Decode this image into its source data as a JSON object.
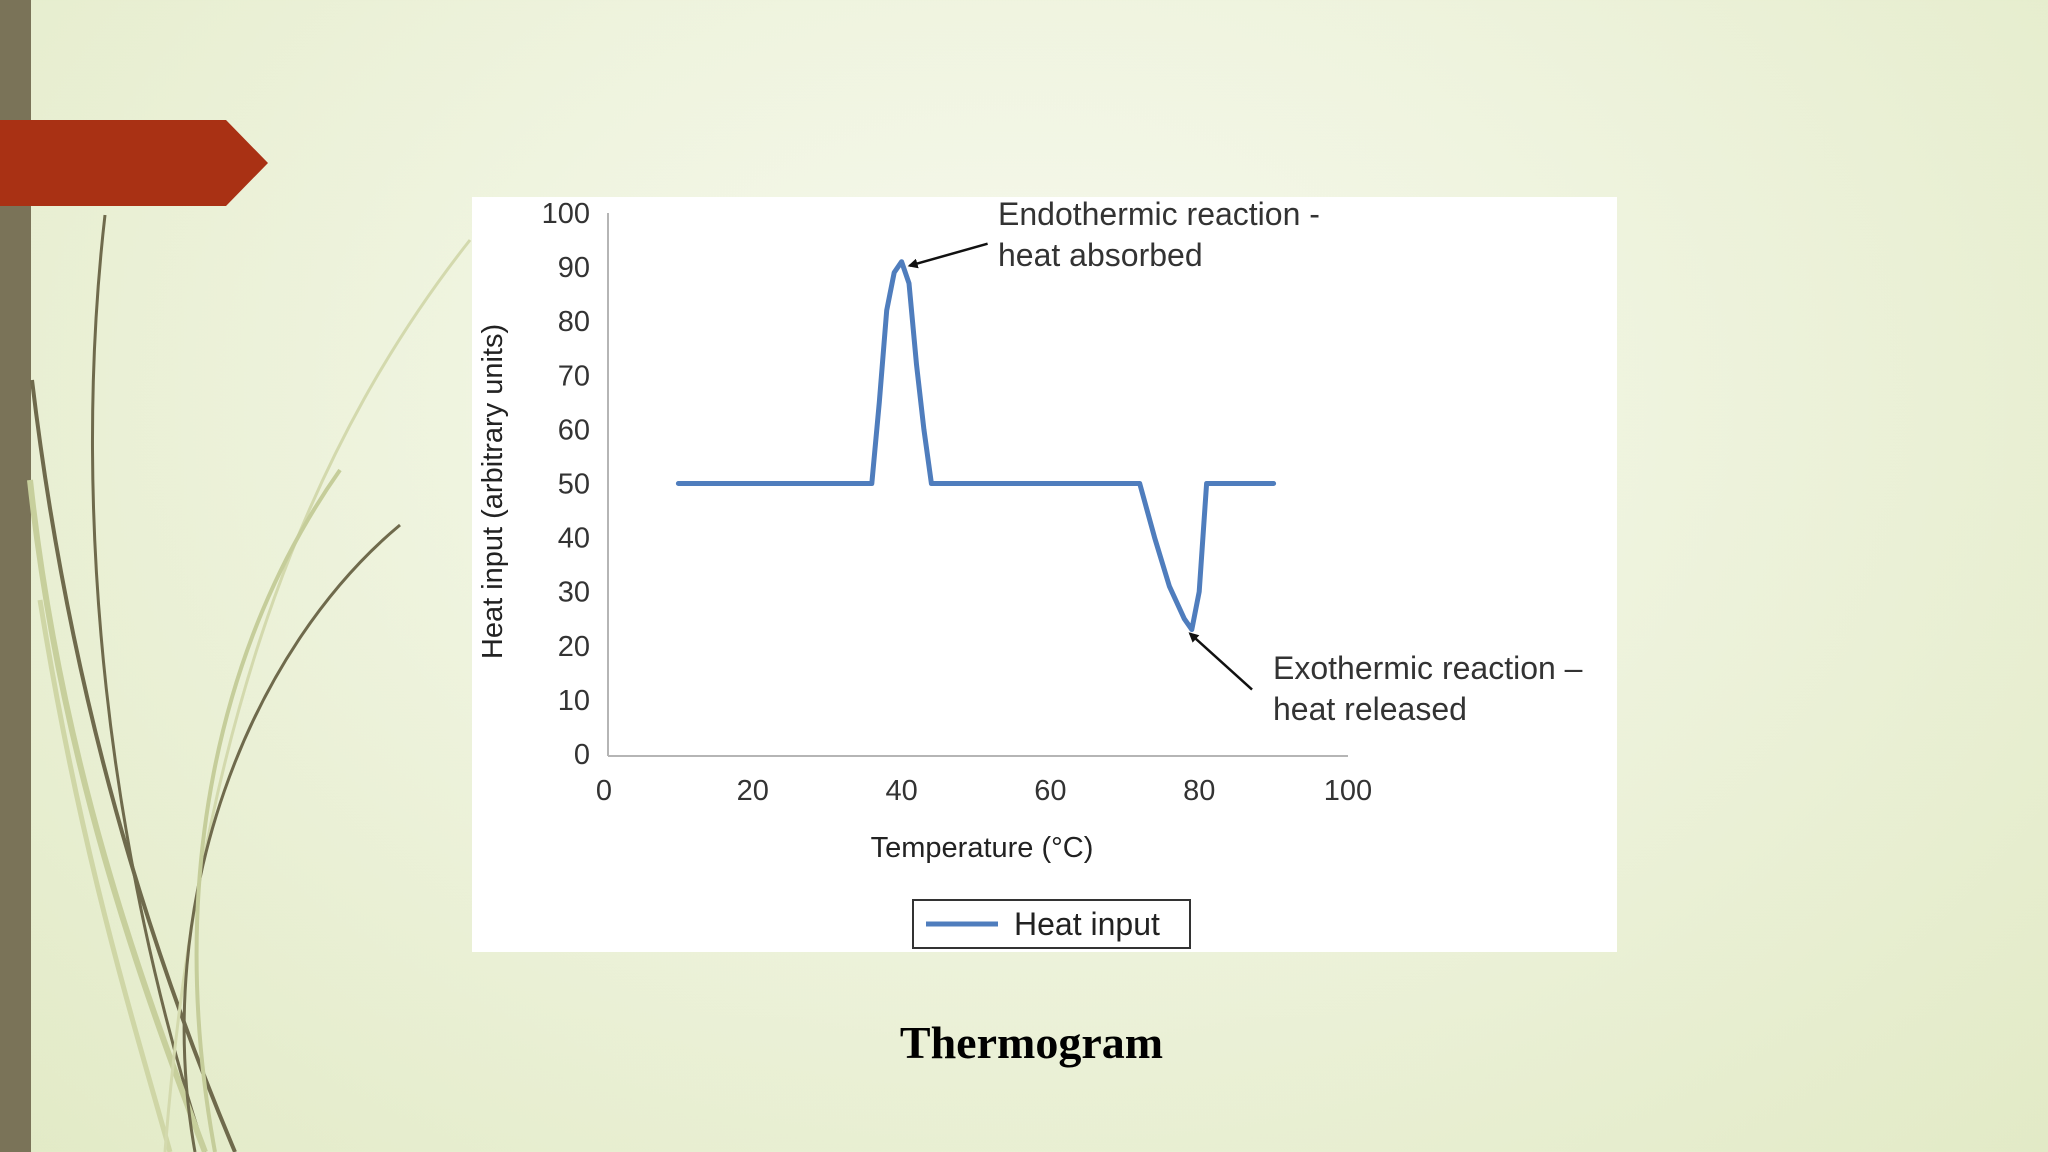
{
  "slide": {
    "caption": "Thermogram",
    "colors": {
      "accent": "#a93114",
      "left_bar": "#7a7358",
      "line": "#4f7dbd"
    }
  },
  "chart_data": {
    "type": "line",
    "xlabel": "Temperature (°C)",
    "ylabel": "Heat input (arbitrary units)",
    "xlim": [
      0,
      100
    ],
    "ylim": [
      0,
      100
    ],
    "xticks": [
      0,
      20,
      40,
      60,
      80,
      100
    ],
    "yticks": [
      0,
      10,
      20,
      30,
      40,
      50,
      60,
      70,
      80,
      90,
      100
    ],
    "grid": false,
    "legend": {
      "position": "bottom-center",
      "entries": [
        "Heat input"
      ]
    },
    "series": [
      {
        "name": "Heat input",
        "x": [
          10,
          36,
          37,
          38,
          39,
          40,
          41,
          42,
          43,
          44,
          72,
          74,
          76,
          78,
          79,
          80,
          81,
          90
        ],
        "y": [
          50,
          50,
          65,
          82,
          89,
          91,
          87,
          72,
          60,
          50,
          50,
          40,
          31,
          25,
          23,
          30,
          50,
          50
        ]
      }
    ],
    "annotations": [
      {
        "lines": [
          "Endothermic reaction -",
          "heat absorbed"
        ],
        "x": 40,
        "y": 91
      },
      {
        "lines": [
          "Exothermic reaction –",
          "heat released"
        ],
        "x": 78.5,
        "y": 23
      }
    ]
  }
}
